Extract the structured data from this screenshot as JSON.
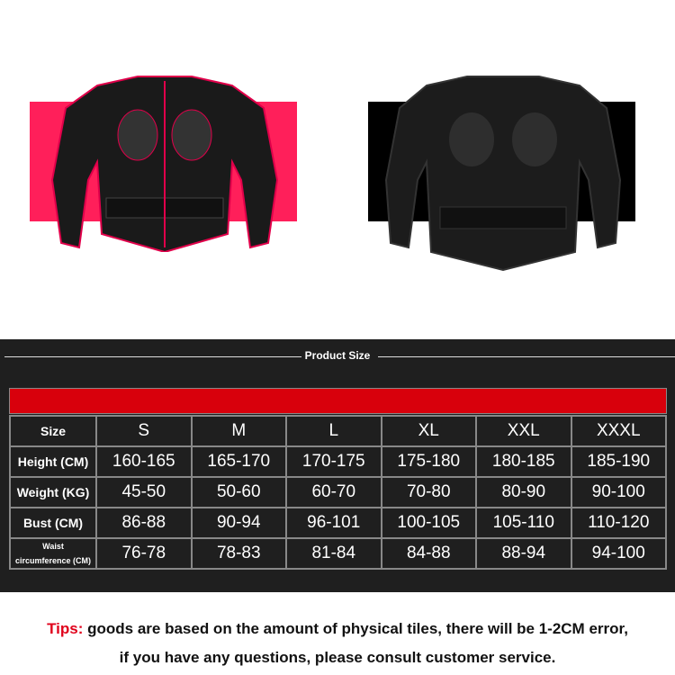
{
  "images": {
    "left_jacket": {
      "background_color": "#ff1f5a",
      "accent_color": "#e0004a"
    },
    "right_jacket": {
      "background_color": "#000000"
    }
  },
  "size_chart": {
    "title": "Product Size",
    "header_bar_color": "#d8000c",
    "columns": [
      "Size",
      "S",
      "M",
      "L",
      "XL",
      "XXL",
      "XXXL"
    ],
    "rows": [
      {
        "label": "Height (CM)",
        "values": [
          "160-165",
          "165-170",
          "170-175",
          "175-180",
          "180-185",
          "185-190"
        ]
      },
      {
        "label": "Weight (KG)",
        "values": [
          "45-50",
          "50-60",
          "60-70",
          "70-80",
          "80-90",
          "90-100"
        ]
      },
      {
        "label": "Bust (CM)",
        "values": [
          "86-88",
          "90-94",
          "96-101",
          "100-105",
          "105-110",
          "110-120"
        ]
      },
      {
        "label_line1": "Waist",
        "label_line2": "circumference (CM)",
        "values": [
          "76-78",
          "78-83",
          "81-84",
          "84-88",
          "88-94",
          "94-100"
        ]
      }
    ]
  },
  "tips": {
    "label": "Tips:",
    "line1": " goods are based on the amount of physical tiles, there will be 1-2CM error,",
    "line2": "if you have any questions, please consult customer service."
  }
}
